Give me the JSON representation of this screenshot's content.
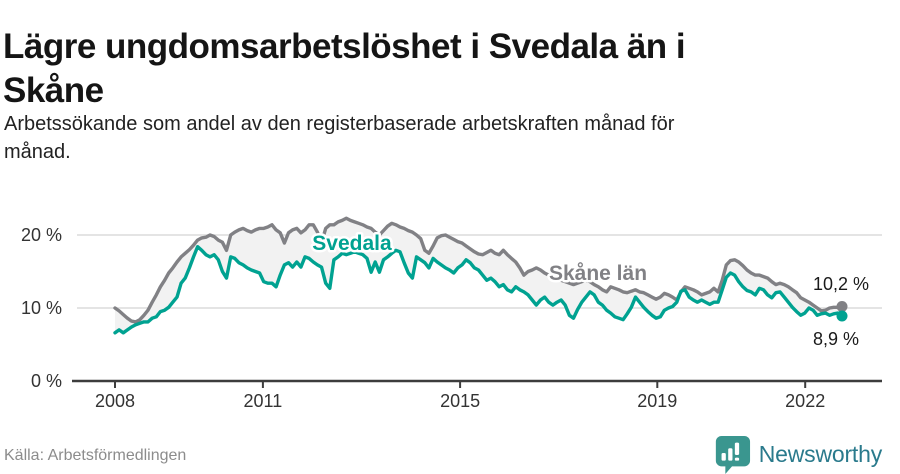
{
  "header": {
    "title_lines": [
      "Lägre ungdomsarbetslöshet i Svedala än i",
      "Skåne"
    ],
    "subtitle_lines": [
      "Arbetssökande som andel av den registerbaserade arbetskraften månad för",
      "månad."
    ]
  },
  "footer": {
    "source": "Källa: Arbetsförmedlingen",
    "brand": "Newsworthy"
  },
  "colors": {
    "svedala_line": "#00a291",
    "skane_line": "#818185",
    "fill_between": "#f2f2f2",
    "grid": "#dcdcdc",
    "axis": "#3d3d3d",
    "axis_text": "#333333",
    "end_label_text": "#1a1a1a",
    "logo_icon": "#3a968f",
    "logo_text": "#2a7a8c"
  },
  "chart_data": {
    "type": "line",
    "frequency": "monthly",
    "x_start": "2008-01",
    "x_end": "2022-09",
    "grid": true,
    "x_tick_years": [
      "2008",
      "2011",
      "2015",
      "2019",
      "2022"
    ],
    "y_ticks": [
      {
        "v": 0,
        "label": "0 %"
      },
      {
        "v": 10,
        "label": "10 %"
      },
      {
        "v": 20,
        "label": "20 %"
      }
    ],
    "ylim": [
      0,
      24
    ],
    "series": [
      {
        "name": "Skåne län",
        "color": "#818185",
        "end_value": 10.2,
        "end_label": "10,2 %",
        "values": [
          10.0,
          9.6,
          9.1,
          8.6,
          8.2,
          8.1,
          8.4,
          9.0,
          9.7,
          10.8,
          11.8,
          12.9,
          13.8,
          14.8,
          15.5,
          16.3,
          17.0,
          17.5,
          18.0,
          18.6,
          19.3,
          19.6,
          19.7,
          20.0,
          19.8,
          19.3,
          19.0,
          17.9,
          20.0,
          20.4,
          20.7,
          20.9,
          20.6,
          20.4,
          20.7,
          20.9,
          20.9,
          21.1,
          21.4,
          20.7,
          20.3,
          18.9,
          20.3,
          20.7,
          20.9,
          20.3,
          20.7,
          21.4,
          21.4,
          20.4,
          18.9,
          20.9,
          21.4,
          21.4,
          21.8,
          22.0,
          22.3,
          22.0,
          21.8,
          21.6,
          21.4,
          21.1,
          20.9,
          20.4,
          20.0,
          20.6,
          21.2,
          21.6,
          21.4,
          21.1,
          20.9,
          20.6,
          20.4,
          20.0,
          19.5,
          17.9,
          17.5,
          18.5,
          19.6,
          19.9,
          20.0,
          19.7,
          19.4,
          19.1,
          18.9,
          18.5,
          18.1,
          17.7,
          17.4,
          17.3,
          17.6,
          17.9,
          17.5,
          17.3,
          17.9,
          17.3,
          16.8,
          16.3,
          15.5,
          14.5,
          15.0,
          15.2,
          15.5,
          15.2,
          14.8,
          14.5,
          14.2,
          14.0,
          13.8,
          13.6,
          13.4,
          13.2,
          13.4,
          13.6,
          13.8,
          13.6,
          13.2,
          12.9,
          12.5,
          12.2,
          12.9,
          12.7,
          12.5,
          12.2,
          12.1,
          12.3,
          12.5,
          12.2,
          12.1,
          11.8,
          11.5,
          11.2,
          11.5,
          12.0,
          11.8,
          11.5,
          11.1,
          12.2,
          12.9,
          12.7,
          12.5,
          12.2,
          11.8,
          12.0,
          12.2,
          12.7,
          12.2,
          13.8,
          15.9,
          16.5,
          16.6,
          16.3,
          15.8,
          15.2,
          14.8,
          14.5,
          14.5,
          14.3,
          14.1,
          13.6,
          13.2,
          13.4,
          13.2,
          12.9,
          12.5,
          12.1,
          11.4,
          11.1,
          10.8,
          10.4,
          10.0,
          9.6,
          9.7,
          10.0,
          10.1,
          10.1,
          10.2
        ]
      },
      {
        "name": "Svedala",
        "color": "#00a291",
        "end_value": 8.9,
        "end_label": "8,9 %",
        "values": [
          6.6,
          7.0,
          6.6,
          7.0,
          7.4,
          7.7,
          7.9,
          8.1,
          8.1,
          8.6,
          8.8,
          9.5,
          9.7,
          10.1,
          10.8,
          11.5,
          13.4,
          14.1,
          15.5,
          17.0,
          18.4,
          17.9,
          17.3,
          17.0,
          17.3,
          16.6,
          15.0,
          14.1,
          17.0,
          16.8,
          16.2,
          15.9,
          15.5,
          15.2,
          15.0,
          14.8,
          13.6,
          13.4,
          13.4,
          12.9,
          14.5,
          15.9,
          16.2,
          15.6,
          16.3,
          15.6,
          17.0,
          16.8,
          16.3,
          15.9,
          15.6,
          13.4,
          12.7,
          16.6,
          17.0,
          17.5,
          17.3,
          17.5,
          17.7,
          17.5,
          17.3,
          16.8,
          14.9,
          16.3,
          14.9,
          16.6,
          17.0,
          17.5,
          17.9,
          17.7,
          16.2,
          14.8,
          14.1,
          17.0,
          16.6,
          16.2,
          15.5,
          16.8,
          16.3,
          15.9,
          15.5,
          15.2,
          14.8,
          15.5,
          15.9,
          16.6,
          16.2,
          15.5,
          15.2,
          14.5,
          13.8,
          14.1,
          13.6,
          12.9,
          13.2,
          12.5,
          12.2,
          12.9,
          12.5,
          12.2,
          11.8,
          11.1,
          10.4,
          11.1,
          11.5,
          10.8,
          10.4,
          10.8,
          11.1,
          10.4,
          9.0,
          8.6,
          9.8,
          10.8,
          11.5,
          12.2,
          11.8,
          10.8,
          10.4,
          9.7,
          9.3,
          8.8,
          8.6,
          8.4,
          9.2,
          10.1,
          11.5,
          10.8,
          10.1,
          9.5,
          9.0,
          8.6,
          8.8,
          9.7,
          10.0,
          10.2,
          10.8,
          12.3,
          12.5,
          11.5,
          11.1,
          10.8,
          11.1,
          10.8,
          10.5,
          10.8,
          10.8,
          12.5,
          14.2,
          14.8,
          14.5,
          13.6,
          12.9,
          12.4,
          12.2,
          11.8,
          12.7,
          12.5,
          11.8,
          11.4,
          12.1,
          12.2,
          11.5,
          10.8,
          10.1,
          9.5,
          9.0,
          9.3,
          10.0,
          9.7,
          9.0,
          9.2,
          9.3,
          9.0,
          9.2,
          9.3,
          8.9
        ]
      }
    ]
  }
}
